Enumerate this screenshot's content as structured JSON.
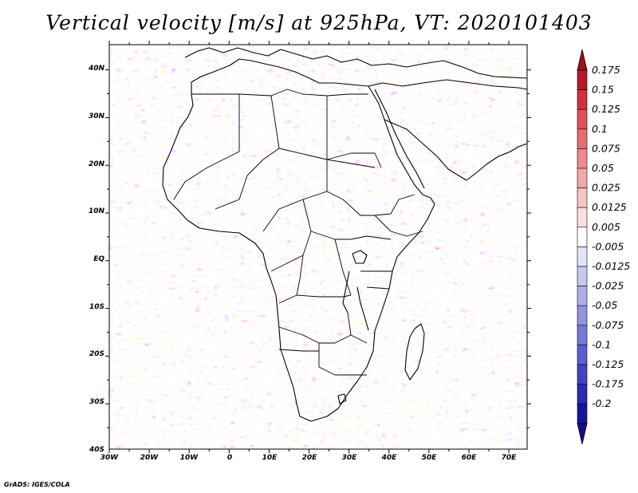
{
  "title": "Vertical velocity [m/s] at 925hPa, VT: 2020101403",
  "credit": "GrADS: IGES/COLA",
  "lat_labels": [
    "40N",
    "30N",
    "20N",
    "10N",
    "EQ",
    "10S",
    "20S",
    "30S",
    "40S"
  ],
  "lon_labels": [
    "30W",
    "20W",
    "10W",
    "0",
    "10E",
    "20E",
    "30E",
    "40E",
    "50E",
    "60E",
    "70E"
  ],
  "colorbar": {
    "labels": [
      "0.175",
      "0.15",
      "0.125",
      "0.1",
      "0.075",
      "0.05",
      "0.025",
      "0.0125",
      "0.005",
      "-0.005",
      "-0.0125",
      "-0.025",
      "-0.05",
      "-0.075",
      "-0.1",
      "-0.125",
      "-0.175",
      "-0.2"
    ],
    "colors": [
      "#b8182a",
      "#d42f3b",
      "#e2505a",
      "#ea6c73",
      "#f08a8f",
      "#f4a7aa",
      "#f8c4c6",
      "#fbe0e1",
      "#ffffff",
      "#e3e3fa",
      "#c8c8f3",
      "#aeaeec",
      "#9393e4",
      "#7878da",
      "#5e5ed0",
      "#4343c4",
      "#2b2bb2",
      "#15159c"
    ],
    "top_arrow_color": "#a0101c",
    "bottom_arrow_color": "#1a0a8c"
  }
}
